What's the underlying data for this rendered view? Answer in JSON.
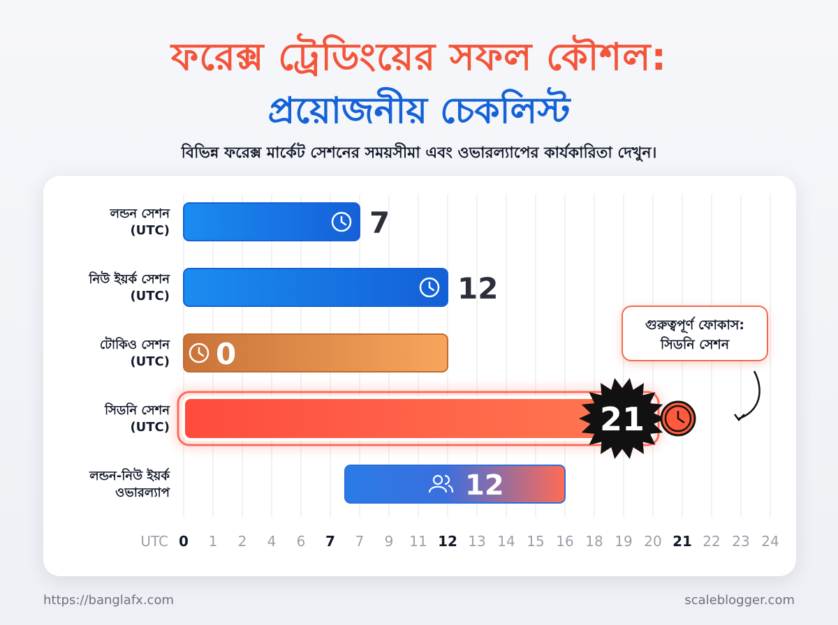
{
  "header": {
    "title_line1": "ফরেক্স ট্রেডিংয়ের সফল কৌশল:",
    "title_line2": "প্রয়োজনীয় চেকলিস্ট",
    "subtitle": "বিভিন্ন ফরেক্স মার্কেট সেশনের সময়সীমা এবং ওভারল্যাপের কার্যকারিতা দেখুন।"
  },
  "callout": {
    "line1": "গুরুত্বপূর্ণ ফোকাস:",
    "line2": "সিডনি সেশন"
  },
  "footer": {
    "left": "https://banglafx.com",
    "right": "scaleblogger.com"
  },
  "colors": {
    "london": "#1f7ae8",
    "newyork": "#1a6fe0",
    "tokyo": "#e8934a",
    "sydney": "#ff4b3e",
    "overlap_start": "#2a7be6",
    "overlap_end": "#ff6b55"
  },
  "chart_data": {
    "type": "bar",
    "orientation": "horizontal",
    "title": "ফরেক্স ট্রেডিংয়ের সফল কৌশল: প্রয়োজনীয় চেকলিস্ট",
    "x_axis_prefix": "UTC",
    "x_ticks": [
      "0",
      "1",
      "2",
      "4",
      "6",
      "7",
      "7",
      "9",
      "11",
      "12",
      "13",
      "14",
      "15",
      "16",
      "18",
      "19",
      "20",
      "21",
      "22",
      "23",
      "24"
    ],
    "x_ticks_bold": [
      "0",
      "7",
      "12",
      "21"
    ],
    "categories": [
      [
        "লন্ডন সেশন",
        "(UTC)"
      ],
      [
        "নিউ ইয়র্ক সেশন",
        "(UTC)"
      ],
      [
        "টোকিও সেশন",
        "(UTC)"
      ],
      [
        "সিডনি সেশন",
        "(UTC)"
      ],
      [
        "লন্ডন-নিউ ইয়র্ক",
        "ওভারল্যাপ"
      ]
    ],
    "bars": [
      {
        "start": 0,
        "end": 6,
        "label": "7",
        "icon": "clock-icon",
        "style": "london"
      },
      {
        "start": 0,
        "end": 9,
        "label": "12",
        "icon": "clock-icon",
        "style": "newyork"
      },
      {
        "start": 0,
        "end": 9,
        "label": "0",
        "icon": "clock-icon",
        "style": "tokyo"
      },
      {
        "start": 0,
        "end": 16,
        "label": "21",
        "icon": "clock-icon",
        "style": "sydney"
      },
      {
        "start": 5.5,
        "end": 13,
        "label": "12",
        "icon": "users-icon",
        "style": "overlap"
      }
    ]
  }
}
